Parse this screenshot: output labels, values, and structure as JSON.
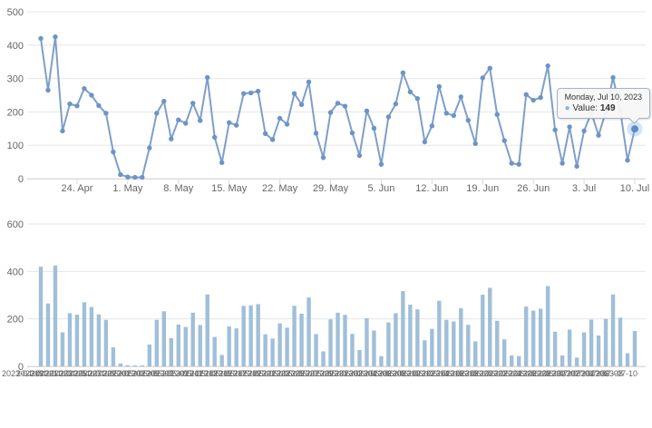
{
  "colors": {
    "line": "#7e9fc8",
    "marker": "#6b94c8",
    "hover_halo": "rgba(124,181,236,0.35)",
    "hover_dot": "#5b8cc4",
    "bar": "#a0bfd8",
    "grid": "#e6e6e6",
    "axis_line": "#d8d8d8",
    "label": "#666666",
    "tooltip_value_color": "#7cb5ec"
  },
  "tooltip": {
    "header": "Monday, Jul 10, 2023",
    "bullet": "●",
    "label": "Value:",
    "value": "149"
  },
  "chart_data": [
    {
      "type": "line",
      "title": "",
      "xlabel": "",
      "ylabel": "",
      "ylim": [
        0,
        500
      ],
      "yticks": [
        0,
        100,
        200,
        300,
        400,
        500
      ],
      "grid": true,
      "legend": false,
      "markers": true,
      "x": [
        "2023-04-19",
        "2023-04-20",
        "2023-04-21",
        "2023-04-22",
        "2023-04-23",
        "2023-04-24",
        "2023-04-25",
        "2023-04-26",
        "2023-04-27",
        "2023-04-28",
        "2023-04-29",
        "2023-04-30",
        "2023-05-01",
        "2023-05-02",
        "2023-05-03",
        "2023-05-04",
        "2023-05-05",
        "2023-05-06",
        "2023-05-07",
        "2023-05-08",
        "2023-05-09",
        "2023-05-10",
        "2023-05-11",
        "2023-05-12",
        "2023-05-13",
        "2023-05-14",
        "2023-05-15",
        "2023-05-16",
        "2023-05-17",
        "2023-05-18",
        "2023-05-19",
        "2023-05-20",
        "2023-05-21",
        "2023-05-22",
        "2023-05-23",
        "2023-05-24",
        "2023-05-25",
        "2023-05-26",
        "2023-05-27",
        "2023-05-28",
        "2023-05-29",
        "2023-05-30",
        "2023-05-31",
        "2023-06-01",
        "2023-06-02",
        "2023-06-03",
        "2023-06-04",
        "2023-06-05",
        "2023-06-06",
        "2023-06-07",
        "2023-06-08",
        "2023-06-09",
        "2023-06-10",
        "2023-06-11",
        "2023-06-12",
        "2023-06-13",
        "2023-06-14",
        "2023-06-15",
        "2023-06-16",
        "2023-06-17",
        "2023-06-18",
        "2023-06-19",
        "2023-06-20",
        "2023-06-21",
        "2023-06-22",
        "2023-06-23",
        "2023-06-24",
        "2023-06-25",
        "2023-06-26",
        "2023-06-27",
        "2023-06-28",
        "2023-06-29",
        "2023-06-30",
        "2023-07-01",
        "2023-07-02",
        "2023-07-03",
        "2023-07-04",
        "2023-07-05",
        "2023-07-06",
        "2023-07-07",
        "2023-07-08",
        "2023-07-09",
        "2023-07-10"
      ],
      "values": [
        420,
        265,
        425,
        143,
        224,
        218,
        270,
        250,
        219,
        196,
        80,
        12,
        5,
        4,
        4,
        92,
        196,
        232,
        119,
        176,
        166,
        226,
        174,
        303,
        124,
        48,
        168,
        160,
        255,
        257,
        262,
        135,
        117,
        181,
        163,
        255,
        222,
        290,
        136,
        63,
        198,
        226,
        217,
        137,
        69,
        203,
        151,
        43,
        185,
        224,
        317,
        260,
        240,
        110,
        158,
        276,
        196,
        189,
        245,
        175,
        105,
        302,
        331,
        192,
        114,
        46,
        43,
        252,
        235,
        243,
        338,
        146,
        46,
        155,
        37,
        143,
        197,
        130,
        200,
        303,
        205,
        55,
        149
      ],
      "xticks": [
        {
          "i": 5,
          "label": "24. Apr"
        },
        {
          "i": 12,
          "label": "1. May"
        },
        {
          "i": 19,
          "label": "8. May"
        },
        {
          "i": 26,
          "label": "15. May"
        },
        {
          "i": 33,
          "label": "22. May"
        },
        {
          "i": 40,
          "label": "29. May"
        },
        {
          "i": 47,
          "label": "5. Jun"
        },
        {
          "i": 54,
          "label": "12. Jun"
        },
        {
          "i": 61,
          "label": "19. Jun"
        },
        {
          "i": 68,
          "label": "26. Jun"
        },
        {
          "i": 75,
          "label": "3. Jul"
        },
        {
          "i": 82,
          "label": "10. Jul"
        }
      ],
      "hover_point": {
        "index": 82,
        "date": "2023-07-10",
        "value": 149
      }
    },
    {
      "type": "bar",
      "title": "",
      "xlabel": "",
      "ylabel": "",
      "ylim": [
        0,
        600
      ],
      "yticks": [
        0,
        200,
        400,
        600
      ],
      "grid": true,
      "legend": false,
      "values": [
        420,
        265,
        425,
        143,
        224,
        218,
        270,
        250,
        219,
        196,
        80,
        12,
        5,
        4,
        4,
        92,
        196,
        232,
        119,
        176,
        166,
        226,
        174,
        303,
        124,
        48,
        168,
        160,
        255,
        257,
        262,
        135,
        117,
        181,
        163,
        255,
        222,
        290,
        136,
        63,
        198,
        226,
        217,
        137,
        69,
        203,
        151,
        43,
        185,
        224,
        317,
        260,
        240,
        110,
        158,
        276,
        196,
        189,
        245,
        175,
        105,
        302,
        331,
        192,
        114,
        46,
        43,
        252,
        235,
        243,
        338,
        146,
        46,
        155,
        37,
        143,
        197,
        130,
        200,
        303,
        205,
        55,
        149
      ],
      "xtick_rotation": -45,
      "xtick_every": 2,
      "xtick_labels": [
        "2023-04-19",
        "2023-04-21",
        "2023-04-23",
        "2023-04-25",
        "2023-04-27",
        "2023-04-29",
        "2023-05-01",
        "2023-05-03",
        "2023-05-05",
        "2023-05-07",
        "2023-05-09",
        "2023-05-11",
        "2023-05-13",
        "2023-05-15",
        "2023-05-17",
        "2023-05-19",
        "2023-05-21",
        "2023-05-23",
        "2023-05-25",
        "2023-05-27",
        "2023-05-29",
        "2023-05-31",
        "2023-06-02",
        "2023-06-04",
        "2023-06-06",
        "2023-06-08",
        "2023-06-10",
        "2023-06-12",
        "2023-06-14",
        "2023-06-16",
        "2023-06-18",
        "2023-06-20",
        "2023-06-22",
        "2023-06-24",
        "2023-06-26",
        "2023-06-28",
        "2023-06-30",
        "2023-07-02",
        "2023-07-04",
        "2023-07-06",
        "2023-07-08",
        "2023-07-10"
      ]
    }
  ]
}
